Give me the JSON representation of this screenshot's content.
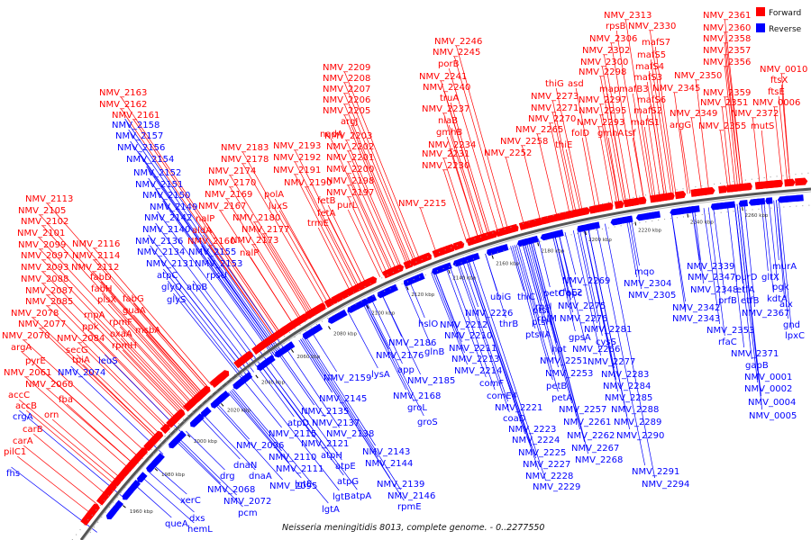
{
  "caption": "Neisseria meningitidis 8013, complete genome. - 0..2277550",
  "legend": [
    {
      "label": "Forward",
      "color": "#ff0000"
    },
    {
      "label": "Reverse",
      "color": "#0000ff"
    }
  ],
  "colors": {
    "forward": "#ff0000",
    "reverse": "#0000ff",
    "axis": "#555555"
  },
  "ticks": [
    "1960 kbp",
    "1980 kbp",
    "2000 kbp",
    "2020 kbp",
    "2040 kbp",
    "2060 kbp",
    "2080 kbp",
    "2100 kbp",
    "2120 kbp",
    "2140 kbp",
    "2160 kbp",
    "2180 kbp",
    "2200 kbp",
    "2220 kbp",
    "2240 kbp",
    "2260 kbp"
  ],
  "forward_labels": [
    [
      "NMV_2313",
      670,
      11
    ],
    [
      "NMV_2361",
      780,
      11
    ],
    [
      "rpsB",
      672,
      23
    ],
    [
      "NMV_2330",
      697,
      23
    ],
    [
      "NMV_2360",
      780,
      25
    ],
    [
      "NMV_2246",
      482,
      40
    ],
    [
      "NMV_2306",
      654,
      37
    ],
    [
      "mafS7",
      712,
      41
    ],
    [
      "NMV_2358",
      780,
      37
    ],
    [
      "NMV_2245",
      480,
      52
    ],
    [
      "NMV_2302",
      646,
      50
    ],
    [
      "mafS5",
      707,
      55
    ],
    [
      "NMV_2357",
      780,
      50
    ],
    [
      "NMV_2300",
      644,
      63
    ],
    [
      "mafS4",
      705,
      68
    ],
    [
      "NMV_2356",
      780,
      63
    ],
    [
      "NMV_2209",
      358,
      69
    ],
    [
      "porB",
      486,
      65
    ],
    [
      "NMV_2298",
      642,
      74
    ],
    [
      "NMV_0010",
      843,
      71
    ],
    [
      "NMV_2208",
      358,
      81
    ],
    [
      "NMV_2241",
      465,
      79
    ],
    [
      "mafS3",
      703,
      80
    ],
    [
      "NMV_2350",
      748,
      78
    ],
    [
      "ftsX",
      855,
      83
    ],
    [
      "NMV_2207",
      358,
      93
    ],
    [
      "NMV_2240",
      469,
      91
    ],
    [
      "thiG",
      605,
      87
    ],
    [
      "asd",
      630,
      87
    ],
    [
      "map",
      665,
      93
    ],
    [
      "mafB3",
      687,
      93
    ],
    [
      "NMV_2345",
      724,
      92
    ],
    [
      "NMV_2359",
      780,
      97
    ],
    [
      "ftsE",
      852,
      96
    ],
    [
      "NMV_2163",
      110,
      97
    ],
    [
      "NMV_2206",
      358,
      105
    ],
    [
      "truA",
      488,
      103
    ],
    [
      "NMV_2273",
      589,
      101
    ],
    [
      "NMV_2297",
      642,
      105
    ],
    [
      "mafS6",
      707,
      105
    ],
    [
      "NMV_2351",
      777,
      108
    ],
    [
      "NMV_0006",
      835,
      108
    ],
    [
      "NMV_2162",
      110,
      110
    ],
    [
      "NMV_2205",
      358,
      117
    ],
    [
      "NMV_2237",
      468,
      115
    ],
    [
      "NMV_2271",
      589,
      114
    ],
    [
      "NMV_2295",
      642,
      117
    ],
    [
      "mafS2",
      703,
      117
    ],
    [
      "NMV_2349",
      743,
      120
    ],
    [
      "NMV_2372",
      811,
      120
    ],
    [
      "NMV_2161",
      124,
      122
    ],
    [
      "argJ",
      378,
      129
    ],
    [
      "nlaB",
      486,
      128
    ],
    [
      "NMV_2270",
      586,
      126
    ],
    [
      "NMV_2293",
      640,
      130
    ],
    [
      "mafS1",
      700,
      130
    ],
    [
      "argG",
      743,
      133
    ],
    [
      "NMV_2355",
      775,
      134
    ],
    [
      "mutS",
      833,
      134
    ],
    [
      "nadA",
      355,
      143
    ],
    [
      "NMV_2203",
      360,
      145
    ],
    [
      "gmhB",
      484,
      141
    ],
    [
      "NMV_2265",
      572,
      138
    ],
    [
      "folD",
      634,
      142
    ],
    [
      "gmhA",
      663,
      142
    ],
    [
      "tsf",
      693,
      142
    ],
    [
      "NMV_2183",
      245,
      158
    ],
    [
      "NMV_2193",
      303,
      156
    ],
    [
      "NMV_2202",
      362,
      157
    ],
    [
      "NMV_2234",
      475,
      155
    ],
    [
      "NMV_2258",
      555,
      151
    ],
    [
      "thiE",
      616,
      155
    ],
    [
      "NMV_2178",
      245,
      171
    ],
    [
      "NMV_2192",
      303,
      169
    ],
    [
      "NMV_2201",
      362,
      169
    ],
    [
      "NMV_2231",
      468,
      165
    ],
    [
      "NMV_2252",
      537,
      164
    ],
    [
      "NMV_2174",
      231,
      184
    ],
    [
      "NMV_2191",
      303,
      183
    ],
    [
      "NMV_2200",
      362,
      182
    ],
    [
      "NMV_2230",
      468,
      178
    ],
    [
      "NMV_2170",
      231,
      197
    ],
    [
      "NMV_2190",
      315,
      197
    ],
    [
      "NMV_2198",
      362,
      195
    ],
    [
      "polA",
      293,
      210
    ],
    [
      "NMV_2197",
      362,
      208
    ],
    [
      "NMV_2113",
      28,
      215
    ],
    [
      "NMV_2169",
      227,
      210
    ],
    [
      "NMV_2167",
      220,
      223
    ],
    [
      "luxS",
      298,
      223
    ],
    [
      "fetB",
      352,
      217
    ],
    [
      "NMV_2215",
      442,
      220
    ],
    [
      "NMV_2105",
      20,
      228
    ],
    [
      "nalP",
      217,
      237
    ],
    [
      "NMV_2180",
      258,
      236
    ],
    [
      "fetA",
      352,
      231
    ],
    [
      "purL",
      374,
      222
    ],
    [
      "NMV_2102",
      23,
      240
    ],
    [
      "trmE",
      341,
      242
    ],
    [
      "aldA",
      213,
      250
    ],
    [
      "NMV_2177",
      268,
      249
    ],
    [
      "NMV_2101",
      19,
      253
    ],
    [
      "NMV_2160",
      208,
      262
    ],
    [
      "NMV_2173",
      256,
      261
    ],
    [
      "NMV_2099",
      20,
      266
    ],
    [
      "NMV_2116",
      80,
      265
    ],
    [
      "nalP",
      266,
      275
    ],
    [
      "NMV_2097",
      23,
      278
    ],
    [
      "NMV_2114",
      80,
      278
    ],
    [
      "NMV_2093",
      23,
      291
    ],
    [
      "NMV_2112",
      79,
      291
    ],
    [
      "fabD",
      100,
      302
    ],
    [
      "NMV_2088",
      23,
      304
    ],
    [
      "fabH",
      101,
      315
    ],
    [
      "NMV_2087",
      28,
      317
    ],
    [
      "plsX",
      108,
      327
    ],
    [
      "fabG",
      136,
      326
    ],
    [
      "NMV_2085",
      28,
      329
    ],
    [
      "guaA",
      136,
      339
    ],
    [
      "NMV_2078",
      12,
      342
    ],
    [
      "rnpA",
      93,
      344
    ],
    [
      "rpmF",
      121,
      352
    ],
    [
      "msbA",
      150,
      361
    ],
    [
      "NMV_2077",
      20,
      354
    ],
    [
      "ppk",
      91,
      357
    ],
    [
      "oxaA",
      122,
      365
    ],
    [
      "NMV_2070",
      2,
      367
    ],
    [
      "NMV_2084",
      63,
      370
    ],
    [
      "rpmH",
      124,
      378
    ],
    [
      "argA",
      12,
      380
    ],
    [
      "secG",
      73,
      383
    ],
    [
      "tpiA",
      80,
      394
    ],
    [
      "pyrE",
      28,
      395
    ],
    [
      "NMV_2061",
      4,
      408
    ],
    [
      "NMV_2060",
      28,
      421
    ],
    [
      "accC",
      9,
      433
    ],
    [
      "fba",
      65,
      438
    ],
    [
      "accB",
      17,
      445
    ],
    [
      "orn",
      49,
      455
    ],
    [
      "carB",
      25,
      471
    ],
    [
      "carA",
      14,
      484
    ],
    [
      "pilC1",
      4,
      496
    ]
  ],
  "reverse_labels": [
    [
      "NMV_2158",
      124,
      133
    ],
    [
      "NMV_2157",
      128,
      145
    ],
    [
      "NMV_2156",
      130,
      158
    ],
    [
      "NMV_2154",
      140,
      171
    ],
    [
      "NMV_2152",
      148,
      186
    ],
    [
      "NMV_2151",
      150,
      199
    ],
    [
      "NMV_2150",
      158,
      211
    ],
    [
      "NMV_2149",
      166,
      224
    ],
    [
      "NMV_2142",
      160,
      236
    ],
    [
      "NMV_2140",
      158,
      249
    ],
    [
      "NMV_2136",
      150,
      262
    ],
    [
      "NMV_2134",
      152,
      274
    ],
    [
      "NMV_2155",
      209,
      274
    ],
    [
      "NMV_2131",
      162,
      287
    ],
    [
      "NMV_2153",
      216,
      287
    ],
    [
      "atpC",
      174,
      300
    ],
    [
      "rpsU",
      229,
      300
    ],
    [
      "glyQ",
      179,
      313
    ],
    [
      "atpB",
      207,
      313
    ],
    [
      "glyS",
      185,
      327
    ],
    [
      "NMV_2339",
      762,
      290
    ],
    [
      "murA",
      857,
      290
    ],
    [
      "mqo",
      704,
      296
    ],
    [
      "NMV_2347",
      763,
      302
    ],
    [
      "purD",
      816,
      302
    ],
    [
      "gltX",
      845,
      302
    ],
    [
      "NMV_2304",
      692,
      309
    ],
    [
      "pgk",
      857,
      313
    ],
    [
      "NMV_2269",
      624,
      306
    ],
    [
      "NMV_2305",
      697,
      322
    ],
    [
      "NMV_2348",
      766,
      316
    ],
    [
      "etfA",
      817,
      316
    ],
    [
      "etfB",
      822,
      328
    ],
    [
      "kdtA",
      851,
      326
    ],
    [
      "rfaE2",
      620,
      319
    ],
    [
      "petC",
      603,
      320
    ],
    [
      "ppc",
      628,
      320
    ],
    [
      "ubiG",
      544,
      324
    ],
    [
      "thiC",
      574,
      324
    ],
    [
      "NMV_2342",
      746,
      336
    ],
    [
      "prfB",
      797,
      328
    ],
    [
      "alx",
      865,
      332
    ],
    [
      "NMV_2275",
      619,
      334
    ],
    [
      "NMV_2367",
      823,
      342
    ],
    [
      "NMV_2212",
      488,
      355
    ],
    [
      "NMV_2226",
      516,
      342
    ],
    [
      "rpsl",
      594,
      335
    ],
    [
      "gnd",
      869,
      355
    ],
    [
      "NMV_2276",
      621,
      348
    ],
    [
      "NMV_2343",
      746,
      348
    ],
    [
      "rplM",
      596,
      348
    ],
    [
      "ptsI",
      591,
      339
    ],
    [
      "ptsH",
      590,
      352
    ],
    [
      "thrB",
      554,
      354
    ],
    [
      "hslO",
      464,
      354
    ],
    [
      "NMV_2281",
      648,
      360
    ],
    [
      "NMV_2353",
      784,
      361
    ],
    [
      "lpxC",
      871,
      367
    ],
    [
      "ptsIIA",
      583,
      366
    ],
    [
      "gpsA",
      631,
      369
    ],
    [
      "NMV_2210",
      493,
      367
    ],
    [
      "cysS",
      661,
      374
    ],
    [
      "rfaC",
      797,
      374
    ],
    [
      "NMV_2186",
      431,
      375
    ],
    [
      "NMV_2266",
      635,
      382
    ],
    [
      "NMV_2211",
      498,
      381
    ],
    [
      "NMV_2176",
      417,
      389
    ],
    [
      "glnB",
      471,
      385
    ],
    [
      "hpt",
      612,
      382
    ],
    [
      "NMV_2371",
      811,
      387
    ],
    [
      "NMV_2251",
      599,
      395
    ],
    [
      "NMV_2213",
      501,
      393
    ],
    [
      "NMV_2277",
      652,
      396
    ],
    [
      "gapB",
      827,
      400
    ],
    [
      "app",
      441,
      405
    ],
    [
      "lysA",
      412,
      410
    ],
    [
      "NMV_2214",
      504,
      406
    ],
    [
      "NMV_2185",
      452,
      417
    ],
    [
      "NMV_2253",
      605,
      409
    ],
    [
      "NMV_2283",
      667,
      410
    ],
    [
      "NMV_0001",
      826,
      413
    ],
    [
      "NMV_2159",
      359,
      414
    ],
    [
      "comF",
      532,
      420
    ],
    [
      "petB",
      606,
      423
    ],
    [
      "NMV_2284",
      669,
      423
    ],
    [
      "NMV_0002",
      826,
      426
    ],
    [
      "NMV_2168",
      436,
      434
    ],
    [
      "comE4",
      540,
      434
    ],
    [
      "NMV_2145",
      354,
      437
    ],
    [
      "petA",
      612,
      436
    ],
    [
      "NMV_2285",
      671,
      436
    ],
    [
      "NMV_0004",
      830,
      441
    ],
    [
      "NMV_2135",
      334,
      451
    ],
    [
      "groL",
      452,
      447
    ],
    [
      "NMV_2221",
      549,
      447
    ],
    [
      "NMV_2257",
      620,
      449
    ],
    [
      "NMV_2288",
      678,
      449
    ],
    [
      "NMV_0005",
      831,
      456
    ],
    [
      "atpD",
      319,
      464
    ],
    [
      "NMV_2137",
      346,
      464
    ],
    [
      "groS",
      463,
      463
    ],
    [
      "coaD",
      558,
      459
    ],
    [
      "NMV_2261",
      625,
      463
    ],
    [
      "NMV_2289",
      681,
      463
    ],
    [
      "NMV_2115",
      298,
      476
    ],
    [
      "NMV_2138",
      362,
      476
    ],
    [
      "NMV_2223",
      564,
      471
    ],
    [
      "NMV_2262",
      629,
      478
    ],
    [
      "NMV_2290",
      684,
      478
    ],
    [
      "NMV_2096",
      262,
      489
    ],
    [
      "NMV_2121",
      334,
      487
    ],
    [
      "NMV_2224",
      568,
      483
    ],
    [
      "NMV_2267",
      634,
      492
    ],
    [
      "dnaN",
      259,
      511
    ],
    [
      "NMV_2110",
      298,
      502
    ],
    [
      "atpH",
      356,
      500
    ],
    [
      "NMV_2143",
      402,
      496
    ],
    [
      "NMV_2225",
      575,
      497
    ],
    [
      "NMV_2268",
      638,
      505
    ],
    [
      "NMV_2111",
      306,
      515
    ],
    [
      "atpE",
      372,
      512
    ],
    [
      "NMV_2144",
      405,
      509
    ],
    [
      "NMV_2227",
      580,
      510
    ],
    [
      "drg",
      244,
      523
    ],
    [
      "dnaA",
      276,
      523
    ],
    [
      "lgtE",
      327,
      532
    ],
    [
      "atpG",
      374,
      529
    ],
    [
      "NMV_2139",
      418,
      532
    ],
    [
      "NMV_2228",
      583,
      523
    ],
    [
      "NMV_2291",
      701,
      518
    ],
    [
      "NMV_2068",
      230,
      538
    ],
    [
      "NMV_2095",
      299,
      534
    ],
    [
      "atpA",
      389,
      545
    ],
    [
      "NMV_2146",
      430,
      545
    ],
    [
      "NMV_2229",
      591,
      535
    ],
    [
      "NMV_2294",
      712,
      532
    ],
    [
      "lgtB",
      369,
      546
    ],
    [
      "NMV_2072",
      248,
      551
    ],
    [
      "lgtA",
      357,
      560
    ],
    [
      "rpmE",
      441,
      557
    ],
    [
      "xerC",
      200,
      550
    ],
    [
      "pcm",
      264,
      564
    ],
    [
      "dxs",
      210,
      570
    ],
    [
      "queA",
      183,
      576
    ],
    [
      "hemL",
      208,
      582
    ],
    [
      "NMV_2074",
      64,
      408
    ],
    [
      "leuS",
      109,
      395
    ],
    [
      "crgA",
      14,
      457
    ],
    [
      "fhs",
      7,
      520
    ]
  ]
}
